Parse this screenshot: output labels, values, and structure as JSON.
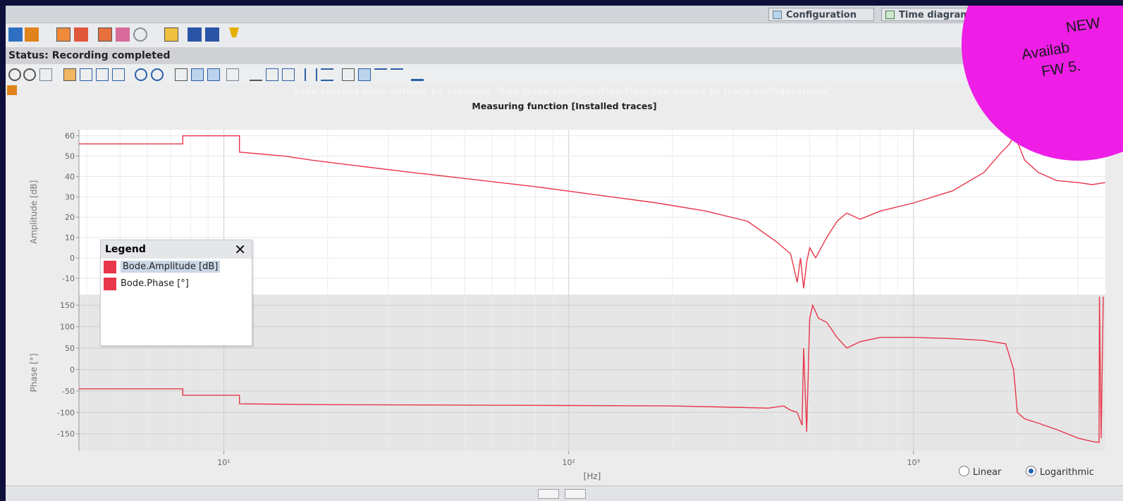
{
  "tabs": [
    {
      "label": "Configuration",
      "icon": "configuration-icon"
    },
    {
      "label": "Time diagram",
      "icon": "time-diagram-icon"
    }
  ],
  "status": "Status: Recording completed",
  "hint": "Save current view options by pressing \"Add trace configuration from the device to trace configurations\".",
  "measuring_title": "Measuring function [Installed traces]",
  "legend": {
    "title": "Legend",
    "close": "✕",
    "items": [
      {
        "label": "Bode.Amplitude [dB]",
        "color": "#e8364a",
        "selected": true
      },
      {
        "label": "Bode.Phase [°]",
        "color": "#e8364a",
        "selected": false
      }
    ]
  },
  "scale": {
    "linear": "Linear",
    "logarithmic": "Logarithmic",
    "selected": "Logarithmic"
  },
  "badge": {
    "line1": "NEW",
    "line2": "Availab",
    "line3": "FW 5."
  },
  "chart_data": [
    {
      "type": "line",
      "xscale": "log",
      "ylabel": "Amplitude [dB]",
      "xlim": [
        3.8,
        3600
      ],
      "ylim": [
        -18,
        63
      ],
      "yticks": [
        60,
        50,
        40,
        30,
        20,
        10,
        0,
        -10
      ],
      "series": [
        {
          "name": "Bode.Amplitude [dB]",
          "color": "#e8364a",
          "x": [
            3.8,
            7.6,
            7.6,
            11.1,
            11.1,
            15,
            18,
            25,
            35,
            50,
            80,
            120,
            180,
            250,
            330,
            400,
            440,
            460,
            470,
            480,
            490,
            500,
            520,
            560,
            600,
            640,
            700,
            800,
            1000,
            1300,
            1600,
            1800,
            1900,
            1950,
            2000,
            2100,
            2300,
            2600,
            3000,
            3300,
            3600
          ],
          "y": [
            56,
            56,
            60,
            60,
            52,
            50,
            48,
            45,
            42,
            39,
            35,
            31,
            27,
            23,
            18,
            8,
            2,
            -12,
            0,
            -15,
            -2,
            5,
            0,
            10,
            18,
            22,
            19,
            23,
            27,
            33,
            42,
            52,
            56,
            60,
            57,
            48,
            42,
            38,
            37,
            36,
            37
          ]
        }
      ]
    },
    {
      "type": "line",
      "xscale": "log",
      "xlabel": "[Hz]",
      "ylabel": "Phase [°]",
      "xlim": [
        3.8,
        3600
      ],
      "ylim": [
        -190,
        175
      ],
      "yticks": [
        150,
        100,
        50,
        0,
        -50,
        -100,
        -150
      ],
      "xticks": [
        10,
        100,
        1000
      ],
      "xticklabels": [
        "10¹",
        "10²",
        "10³"
      ],
      "series": [
        {
          "name": "Bode.Phase [°]",
          "color": "#e8364a",
          "x": [
            3.8,
            7.6,
            7.6,
            11.1,
            11.1,
            20,
            50,
            100,
            200,
            300,
            380,
            420,
            440,
            460,
            475,
            480,
            490,
            500,
            510,
            530,
            560,
            600,
            640,
            700,
            800,
            1000,
            1300,
            1600,
            1850,
            1950,
            2000,
            2100,
            2300,
            2600,
            3000,
            3300,
            3450,
            3460,
            3500,
            3550
          ],
          "y": [
            -45,
            -45,
            -60,
            -60,
            -80,
            -82,
            -83,
            -84,
            -85,
            -88,
            -90,
            -85,
            -95,
            -100,
            -130,
            50,
            -145,
            120,
            150,
            120,
            110,
            75,
            50,
            65,
            75,
            75,
            72,
            68,
            60,
            0,
            -100,
            -115,
            -125,
            -140,
            -160,
            -168,
            -170,
            170,
            -160,
            170
          ]
        }
      ]
    }
  ]
}
